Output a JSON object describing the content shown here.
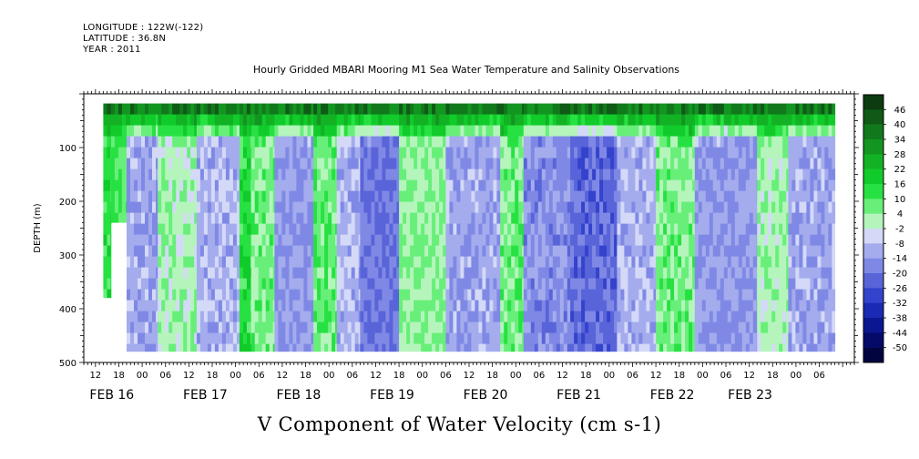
{
  "header": {
    "longitude": "LONGITUDE : 122W(-122)",
    "latitude": "LATITUDE : 36.8N",
    "year": "YEAR : 2011"
  },
  "chart_data": {
    "type": "heatmap",
    "title": "Hourly Gridded MBARI Mooring M1 Sea Water Temperature and Salinity Observations",
    "bottom_title": "V Component of Water Velocity (cm s-1)",
    "ylabel": "DEPTH (m)",
    "xlabel": "",
    "ylim": [
      500,
      0
    ],
    "y_ticks": [
      "100",
      "200",
      "300",
      "400",
      "500"
    ],
    "y_tick_values": [
      100,
      200,
      300,
      400,
      500
    ],
    "x_range_hours": [
      -15,
      183
    ],
    "x_hour_labels": [
      {
        "h": -12,
        "t": "12"
      },
      {
        "h": -6,
        "t": "18"
      },
      {
        "h": 0,
        "t": "00"
      },
      {
        "h": 6,
        "t": "06"
      },
      {
        "h": 12,
        "t": "12"
      },
      {
        "h": 18,
        "t": "18"
      },
      {
        "h": 24,
        "t": "00"
      },
      {
        "h": 30,
        "t": "06"
      },
      {
        "h": 36,
        "t": "12"
      },
      {
        "h": 42,
        "t": "18"
      },
      {
        "h": 48,
        "t": "00"
      },
      {
        "h": 54,
        "t": "06"
      },
      {
        "h": 60,
        "t": "12"
      },
      {
        "h": 66,
        "t": "18"
      },
      {
        "h": 72,
        "t": "00"
      },
      {
        "h": 78,
        "t": "06"
      },
      {
        "h": 84,
        "t": "12"
      },
      {
        "h": 90,
        "t": "18"
      },
      {
        "h": 96,
        "t": "00"
      },
      {
        "h": 102,
        "t": "06"
      },
      {
        "h": 108,
        "t": "12"
      },
      {
        "h": 114,
        "t": "18"
      },
      {
        "h": 120,
        "t": "00"
      },
      {
        "h": 126,
        "t": "06"
      },
      {
        "h": 132,
        "t": "12"
      },
      {
        "h": 138,
        "t": "18"
      },
      {
        "h": 144,
        "t": "00"
      },
      {
        "h": 150,
        "t": "06"
      },
      {
        "h": 156,
        "t": "12"
      },
      {
        "h": 162,
        "t": "18"
      },
      {
        "h": 168,
        "t": "00"
      },
      {
        "h": 174,
        "t": "06"
      }
    ],
    "x_date_labels": [
      {
        "h": -12,
        "t": "FEB 16"
      },
      {
        "h": 12,
        "t": "FEB 17"
      },
      {
        "h": 36,
        "t": "FEB 18"
      },
      {
        "h": 60,
        "t": "FEB 19"
      },
      {
        "h": 84,
        "t": "FEB 20"
      },
      {
        "h": 108,
        "t": "FEB 21"
      },
      {
        "h": 132,
        "t": "FEB 22"
      },
      {
        "h": 152,
        "t": "FEB 23"
      }
    ],
    "colorbar": {
      "labels": [
        "46",
        "40",
        "34",
        "28",
        "22",
        "16",
        "10",
        "4",
        "-2",
        "-8",
        "-14",
        "-20",
        "-26",
        "-32",
        "-38",
        "-44",
        "-50"
      ],
      "levels": [
        46,
        40,
        34,
        28,
        22,
        16,
        10,
        4,
        -2,
        -8,
        -14,
        -20,
        -26,
        -32,
        -38,
        -44,
        -50
      ],
      "colors": [
        "#0c3b10",
        "#0f5a16",
        "#11791c",
        "#139521",
        "#12b224",
        "#10cb2a",
        "#27e142",
        "#68ef7a",
        "#b5f5bc",
        "#d4d9f8",
        "#a4aced",
        "#7f89e5",
        "#5964d9",
        "#3443cc",
        "#1a2ab4",
        "#0b1790",
        "#05096a",
        "#010440"
      ]
    },
    "surface_layer": {
      "depth_bottom": 80,
      "peak_value": 38
    },
    "columns": [
      {
        "h_start": -10,
        "h_end": -8,
        "depth_end": 380,
        "value": 14
      },
      {
        "h_start": -8,
        "h_end": -4,
        "depth_end": 240,
        "value": 10
      },
      {
        "h_start": -4,
        "h_end": 4,
        "depth_end": 480,
        "value": -12
      },
      {
        "h_start": 4,
        "h_end": 14,
        "depth_end": 480,
        "value": 2
      },
      {
        "h_start": 14,
        "h_end": 25,
        "depth_end": 480,
        "value": -10
      },
      {
        "h_start": 25,
        "h_end": 28,
        "depth_end": 480,
        "value": 14
      },
      {
        "h_start": 28,
        "h_end": 34,
        "depth_end": 480,
        "value": 6
      },
      {
        "h_start": 34,
        "h_end": 44,
        "depth_end": 480,
        "value": -14
      },
      {
        "h_start": 44,
        "h_end": 50,
        "depth_end": 480,
        "value": 8
      },
      {
        "h_start": 50,
        "h_end": 56,
        "depth_end": 480,
        "value": -10
      },
      {
        "h_start": 56,
        "h_end": 66,
        "depth_end": 480,
        "value": -20
      },
      {
        "h_start": 66,
        "h_end": 78,
        "depth_end": 480,
        "value": 4
      },
      {
        "h_start": 78,
        "h_end": 92,
        "depth_end": 480,
        "value": -12
      },
      {
        "h_start": 92,
        "h_end": 98,
        "depth_end": 480,
        "value": 6
      },
      {
        "h_start": 98,
        "h_end": 110,
        "depth_end": 480,
        "value": -16
      },
      {
        "h_start": 110,
        "h_end": 122,
        "depth_end": 480,
        "value": -22
      },
      {
        "h_start": 122,
        "h_end": 132,
        "depth_end": 480,
        "value": -10
      },
      {
        "h_start": 132,
        "h_end": 142,
        "depth_end": 480,
        "value": 6
      },
      {
        "h_start": 142,
        "h_end": 158,
        "depth_end": 480,
        "value": -14
      },
      {
        "h_start": 158,
        "h_end": 166,
        "depth_end": 480,
        "value": 2
      },
      {
        "h_start": 166,
        "h_end": 178,
        "depth_end": 480,
        "value": -12
      }
    ]
  }
}
